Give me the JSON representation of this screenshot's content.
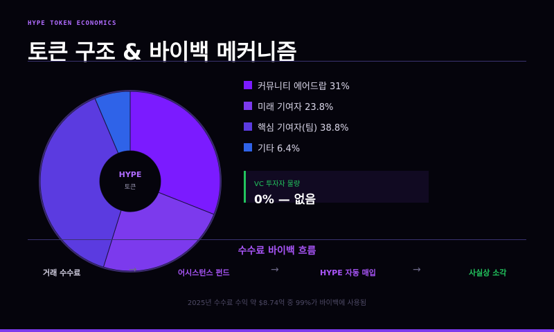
{
  "header": {
    "kicker": "HYPE TOKEN ECONOMICS",
    "title": "토큰 구조 & 바이백 메커니즘"
  },
  "chart_data": {
    "type": "pie",
    "center_label": "HYPE",
    "center_sublabel": "토큰",
    "slices": [
      {
        "label": "커뮤니티 에어드랍 31%",
        "value": 31.0,
        "color": "#7b1bff"
      },
      {
        "label": "미래 기여자 23.8%",
        "value": 23.8,
        "color": "#7c3aed"
      },
      {
        "label": "핵심 기여자(팀) 38.8%",
        "value": 38.8,
        "color": "#5b3be0"
      },
      {
        "label": "기타 6.4%",
        "value": 6.4,
        "color": "#2f63e8"
      }
    ]
  },
  "vc": {
    "label": "VC 투자자 물량",
    "value": "0% — 없음"
  },
  "flow": {
    "title": "수수료 바이백 흐름",
    "steps": [
      {
        "label": "거래 수수료",
        "color": "#d4d1e3"
      },
      {
        "label": "어시스턴스 펀드",
        "color": "#a855f7"
      },
      {
        "label": "HYPE 자동 매입",
        "color": "#a855f7"
      },
      {
        "label": "사실상 소각",
        "color": "#22c55e"
      }
    ],
    "arrow": "→"
  },
  "footnote": "2025년 수수료 수익 약 $8.74억 중 99%가 바이백에 사용됨"
}
